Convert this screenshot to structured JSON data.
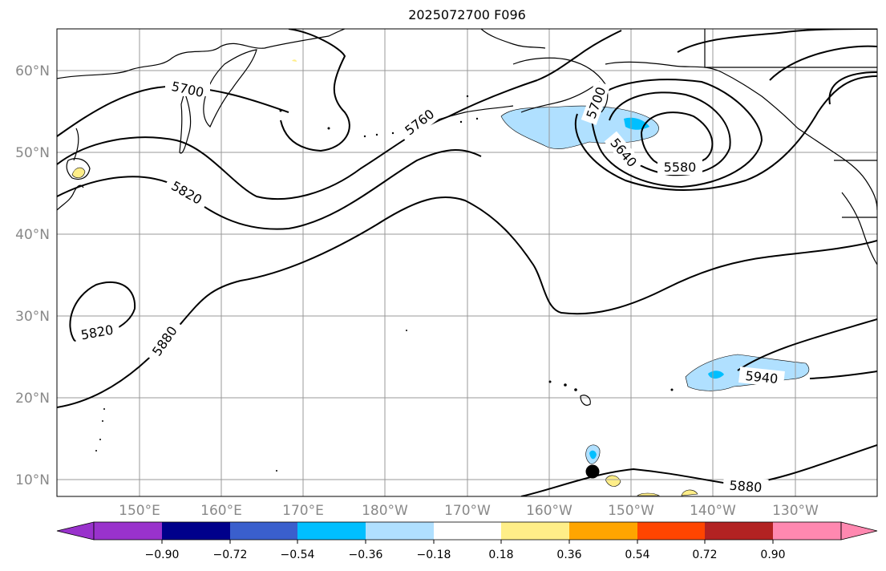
{
  "title": "2025072700 F096",
  "map": {
    "lat_labels": [
      "60°N",
      "50°N",
      "40°N",
      "30°N",
      "20°N",
      "10°N"
    ],
    "lon_labels": [
      "150°E",
      "160°E",
      "170°E",
      "180°W",
      "170°W",
      "160°W",
      "150°W",
      "140°W",
      "130°W"
    ],
    "contour_labels": [
      {
        "text": "5700",
        "name": "contour-label-5700-west"
      },
      {
        "text": "5760",
        "name": "contour-label-5760"
      },
      {
        "text": "5700",
        "name": "contour-label-5700-east"
      },
      {
        "text": "5640",
        "name": "contour-label-5640"
      },
      {
        "text": "5580",
        "name": "contour-label-5580"
      },
      {
        "text": "5820",
        "name": "contour-label-5820-north"
      },
      {
        "text": "5820",
        "name": "contour-label-5820-south"
      },
      {
        "text": "5880",
        "name": "contour-label-5880-west"
      },
      {
        "text": "5940",
        "name": "contour-label-5940"
      },
      {
        "text": "5880",
        "name": "contour-label-5880-south"
      }
    ],
    "marker": "storm-center-dot",
    "colors": {
      "contour": "#000000",
      "light_blue_fill": "#b0e0ff",
      "cyan_fill": "#00bfff",
      "yellow_fill": "#ffee88",
      "grid": "#999999"
    }
  },
  "colorbar": {
    "ticks": [
      "−0.90",
      "−0.72",
      "−0.54",
      "−0.36",
      "−0.18",
      "0.18",
      "0.36",
      "0.54",
      "0.72",
      "0.90"
    ],
    "colors": [
      "#9932cc",
      "#00008b",
      "#3a5fcd",
      "#00bfff",
      "#b0e0ff",
      "#ffffff",
      "#ffee88",
      "#ffa500",
      "#ff4500",
      "#b22222",
      "#ff88b0"
    ]
  }
}
